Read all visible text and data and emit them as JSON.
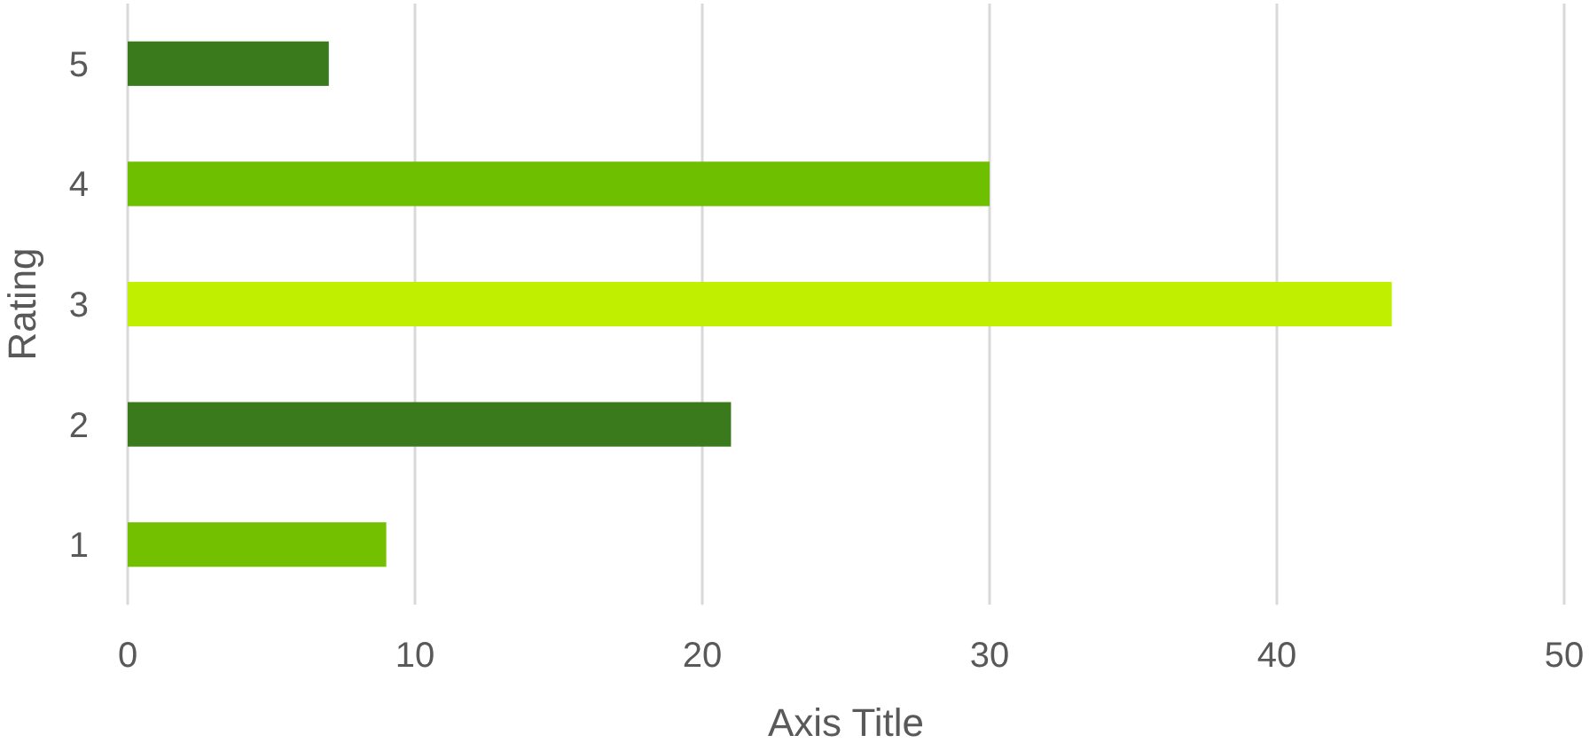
{
  "chart_data": {
    "type": "bar",
    "orientation": "horizontal",
    "xlabel": "Axis Title",
    "ylabel": "Rating",
    "categories": [
      "5",
      "4",
      "3",
      "2",
      "1"
    ],
    "values": [
      7,
      30,
      44,
      21,
      9
    ],
    "colors": [
      "#3a7a1c",
      "#6dbf00",
      "#c0f000",
      "#3a7a1c",
      "#72c000"
    ],
    "xlim": [
      0,
      50
    ],
    "xticks": [
      0,
      10,
      20,
      30,
      40,
      50
    ],
    "grid": "x"
  }
}
